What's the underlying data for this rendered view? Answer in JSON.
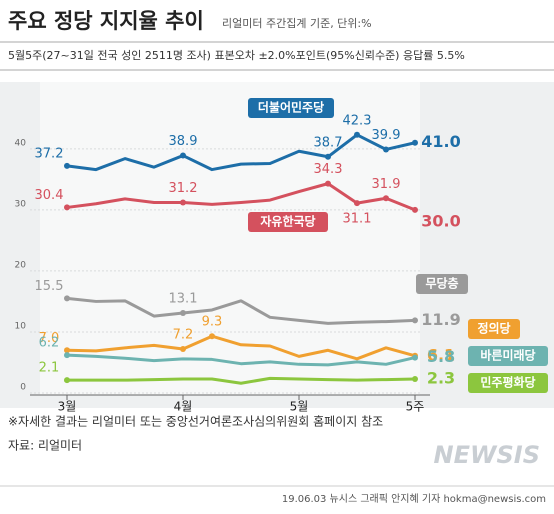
{
  "chart_data": {
    "type": "line",
    "title": "주요 정당 지지율 추이",
    "subtitle": "리얼미터 주간집계 기준, 단위:%",
    "description": "5월5주(27~31일 전국 성인 2511명 조사) 표본오차 ±2.0%포인트(95%신뢰수준) 응답률 5.5%",
    "categories": [
      "3월",
      null,
      null,
      null,
      "4월",
      null,
      null,
      null,
      "5월",
      null,
      null,
      null,
      "5주"
    ],
    "ylim": [
      0,
      48
    ],
    "yticks": [
      0,
      10,
      20,
      30,
      40
    ],
    "grid": true,
    "series": [
      {
        "name": "더불어민주당",
        "color": "#1d6ea8",
        "values": [
          37.2,
          36.6,
          38.4,
          37.0,
          38.9,
          36.6,
          37.5,
          37.6,
          39.6,
          38.7,
          42.3,
          39.9,
          41.0
        ],
        "value_labels": [
          "37.2",
          null,
          null,
          null,
          "38.9",
          null,
          null,
          null,
          null,
          "38.7",
          "42.3",
          "39.9",
          "41.0"
        ]
      },
      {
        "name": "자유한국당",
        "color": "#d4515e",
        "values": [
          30.4,
          31.0,
          31.8,
          31.2,
          31.2,
          30.9,
          31.2,
          31.6,
          33.0,
          34.3,
          31.1,
          31.9,
          30.0
        ],
        "value_labels": [
          "30.4",
          null,
          null,
          null,
          "31.2",
          null,
          null,
          null,
          null,
          "34.3",
          "31.1",
          "31.9",
          "30.0"
        ]
      },
      {
        "name": "무당층",
        "color": "#9a9a9a",
        "values": [
          15.5,
          15.0,
          15.1,
          12.6,
          13.1,
          13.6,
          15.1,
          12.4,
          11.9,
          11.4,
          11.6,
          11.7,
          11.9
        ],
        "value_labels": [
          "15.5",
          null,
          null,
          null,
          "13.1",
          null,
          null,
          null,
          null,
          null,
          null,
          null,
          "11.9"
        ]
      },
      {
        "name": "정의당",
        "color": "#f0a030",
        "values": [
          7.0,
          6.9,
          7.4,
          7.8,
          7.2,
          9.3,
          7.9,
          7.7,
          6.0,
          7.0,
          5.6,
          7.4,
          6.1
        ],
        "value_labels": [
          "7.0",
          null,
          null,
          null,
          "7.2",
          "9.3",
          null,
          null,
          null,
          null,
          null,
          null,
          "6.1"
        ]
      },
      {
        "name": "바른미래당",
        "color": "#6db3b0",
        "values": [
          6.2,
          6.0,
          5.7,
          5.3,
          5.6,
          5.5,
          4.8,
          5.1,
          4.7,
          4.6,
          5.1,
          4.7,
          5.8
        ],
        "value_labels": [
          "6.2",
          null,
          null,
          null,
          null,
          null,
          null,
          null,
          null,
          null,
          null,
          null,
          "5.8"
        ]
      },
      {
        "name": "민주평화당",
        "color": "#8cc63e",
        "values": [
          2.1,
          2.1,
          2.1,
          2.2,
          2.3,
          2.3,
          1.6,
          2.4,
          2.3,
          2.2,
          2.1,
          2.2,
          2.3
        ],
        "value_labels": [
          "2.1",
          null,
          null,
          null,
          null,
          null,
          null,
          null,
          null,
          null,
          null,
          null,
          "2.3"
        ]
      }
    ],
    "note": "※자세한 결과는 리얼미터 또는 중앙선거여론조사심의위원회 홈페이지 참조",
    "source": "자료: 리얼미터",
    "logo": "NEWSIS",
    "credit": "19.06.03 뉴시스 그래픽 안지혜 기자 hokma@newsis.com"
  }
}
